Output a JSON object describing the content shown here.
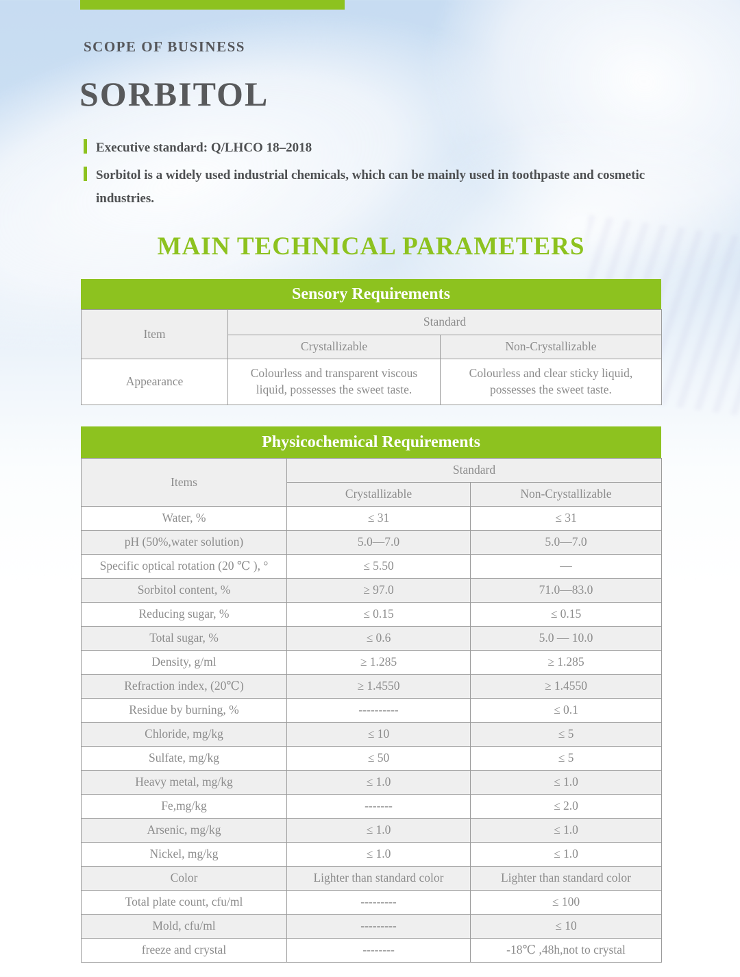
{
  "colors": {
    "accent_green": "#8dc21f",
    "title_gray": "#58595b",
    "table_text_gray": "#8c8c8c",
    "table_border": "#9b9b9b",
    "row_alt_gray": "#efefef",
    "background_blue": "#c7dcf2"
  },
  "header": {
    "scope_label": "SCOPE OF BUSINESS",
    "title": "SORBITOL",
    "bullets": [
      "Executive standard: Q/LHCO 18–2018",
      "Sorbitol is a widely used industrial chemicals, which can be mainly used in toothpaste and cosmetic industries."
    ],
    "section_heading": "MAIN TECHNICAL PARAMETERS"
  },
  "sensory_table": {
    "title": "Sensory Requirements",
    "item_header": "Item",
    "standard_header": "Standard",
    "col1": "Crystallizable",
    "col2": "Non-Crystallizable",
    "rows": [
      {
        "item": "Appearance",
        "crystallizable": "Colourless and transparent viscous liquid, possesses the sweet taste.",
        "non_crystallizable": "Colourless and clear sticky liquid, possesses the sweet taste."
      }
    ]
  },
  "physico_table": {
    "title": "Physicochemical Requirements",
    "item_header": "Items",
    "standard_header": "Standard",
    "col1": "Crystallizable",
    "col2": "Non-Crystallizable",
    "rows": [
      {
        "item": "Water, %",
        "crystallizable": "≤ 31",
        "non_crystallizable": "≤ 31"
      },
      {
        "item": "pH  (50%,water solution)",
        "crystallizable": "5.0—7.0",
        "non_crystallizable": "5.0—7.0"
      },
      {
        "item": "Specific optical rotation (20 ℃ ), °",
        "crystallizable": "≤ 5.50",
        "non_crystallizable": "—"
      },
      {
        "item": "Sorbitol content, %",
        "crystallizable": "≥ 97.0",
        "non_crystallizable": "71.0—83.0"
      },
      {
        "item": "Reducing sugar, %",
        "crystallizable": "≤ 0.15",
        "non_crystallizable": "≤ 0.15"
      },
      {
        "item": "Total sugar, %",
        "crystallizable": "≤ 0.6",
        "non_crystallizable": "5.0 — 10.0"
      },
      {
        "item": "Density, g/ml",
        "crystallizable": "≥ 1.285",
        "non_crystallizable": "≥ 1.285"
      },
      {
        "item": "Refraction index,  (20℃)",
        "crystallizable": "≥ 1.4550",
        "non_crystallizable": "≥ 1.4550"
      },
      {
        "item": "Residue by burning, %",
        "crystallizable": "----------",
        "non_crystallizable": "≤ 0.1"
      },
      {
        "item": "Chloride, mg/kg",
        "crystallizable": "≤ 10",
        "non_crystallizable": "≤ 5"
      },
      {
        "item": "Sulfate, mg/kg",
        "crystallizable": "≤ 50",
        "non_crystallizable": "≤ 5"
      },
      {
        "item": "Heavy metal, mg/kg",
        "crystallizable": "≤ 1.0",
        "non_crystallizable": "≤ 1.0"
      },
      {
        "item": "Fe,mg/kg",
        "crystallizable": "-------",
        "non_crystallizable": "≤ 2.0"
      },
      {
        "item": "Arsenic, mg/kg",
        "crystallizable": "≤ 1.0",
        "non_crystallizable": "≤ 1.0"
      },
      {
        "item": "Nickel, mg/kg",
        "crystallizable": "≤ 1.0",
        "non_crystallizable": "≤ 1.0"
      },
      {
        "item": "Color",
        "crystallizable": "Lighter than standard color",
        "non_crystallizable": "Lighter than standard color"
      },
      {
        "item": "Total plate count, cfu/ml",
        "crystallizable": "---------",
        "non_crystallizable": "≤ 100"
      },
      {
        "item": "Mold, cfu/ml",
        "crystallizable": "---------",
        "non_crystallizable": "≤ 10"
      },
      {
        "item": "freeze and crystal",
        "crystallizable": "--------",
        "non_crystallizable": "-18℃ ,48h,not to crystal"
      }
    ]
  }
}
